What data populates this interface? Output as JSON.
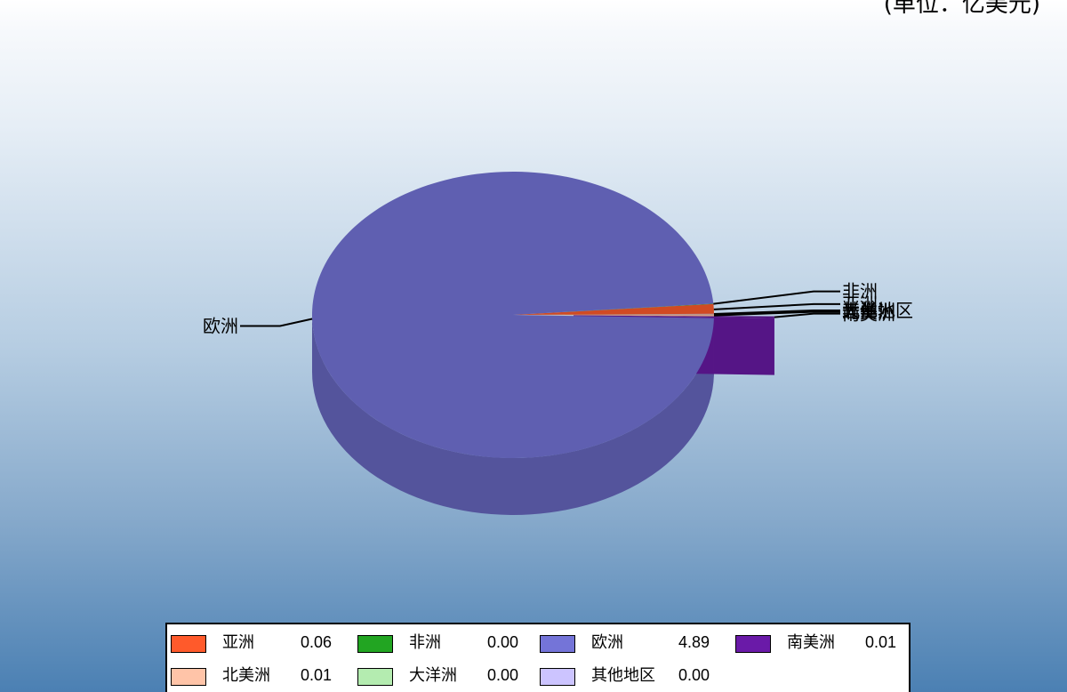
{
  "unit_label": "(单位：亿美元)",
  "chart_data": {
    "type": "pie",
    "title": "",
    "categories": [
      "亚洲",
      "非洲",
      "欧洲",
      "南美洲",
      "北美洲",
      "大洋洲",
      "其他地区"
    ],
    "values": [
      0.06,
      0.0,
      4.89,
      0.01,
      0.01,
      0.0,
      0.0
    ],
    "value_labels": [
      "0.06",
      "0.00",
      "4.89",
      "0.01",
      "0.01",
      "0.00",
      "0.00"
    ],
    "colors": [
      "#ff5a2b",
      "#22a522",
      "#7474d8",
      "#6a1aa8",
      "#ffc4a8",
      "#b4ecb0",
      "#ccc4ff"
    ],
    "exploded": "南美洲",
    "legend_position": "bottom",
    "style": "3d"
  }
}
